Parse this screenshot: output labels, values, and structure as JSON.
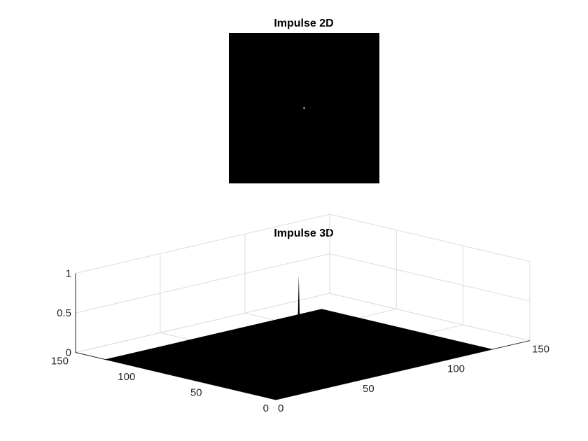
{
  "chart_data": [
    {
      "type": "heatmap",
      "title": "Impulse 2D",
      "image_size": [
        128,
        128
      ],
      "impulse_position": [
        64,
        64
      ],
      "impulse_value": 1,
      "background_value": 0,
      "colormap": "gray",
      "axes_visible": false
    },
    {
      "type": "surface",
      "title": "Impulse 3D",
      "xlim": [
        0,
        150
      ],
      "ylim": [
        0,
        150
      ],
      "zlim": [
        0,
        1
      ],
      "x_ticks": [
        "0",
        "50",
        "100",
        "150"
      ],
      "y_ticks": [
        "0",
        "50",
        "100",
        "150"
      ],
      "z_ticks": [
        "0",
        "0.5",
        "1"
      ],
      "grid": true,
      "surface_color": "#000000",
      "impulse_position": [
        64,
        64
      ],
      "impulse_value": 1
    }
  ]
}
